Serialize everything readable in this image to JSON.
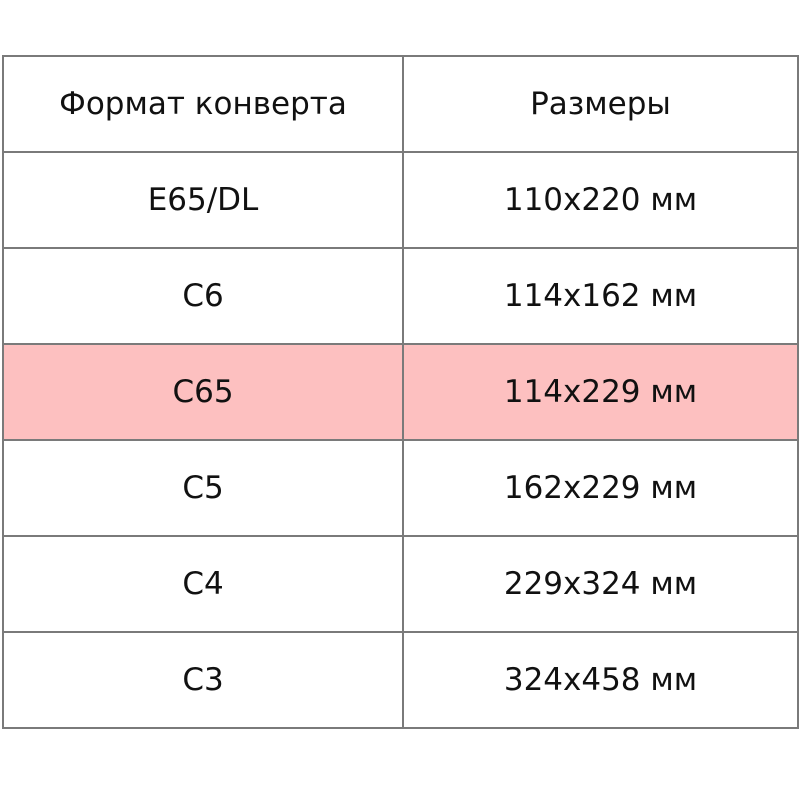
{
  "table": {
    "headers": [
      "Формат конверта",
      "Размеры"
    ],
    "rows": [
      {
        "format": "E65/DL",
        "size": "110x220 мм",
        "highlighted": false
      },
      {
        "format": "C6",
        "size": "114x162 мм",
        "highlighted": false
      },
      {
        "format": "C65",
        "size": "114x229 мм",
        "highlighted": true
      },
      {
        "format": "C5",
        "size": "162x229 мм",
        "highlighted": false
      },
      {
        "format": "C4",
        "size": "229x324 мм",
        "highlighted": false
      },
      {
        "format": "C3",
        "size": "324x458 мм",
        "highlighted": false
      }
    ],
    "highlight_color": "#fdc0c0",
    "border_color": "#7a7a7a"
  }
}
